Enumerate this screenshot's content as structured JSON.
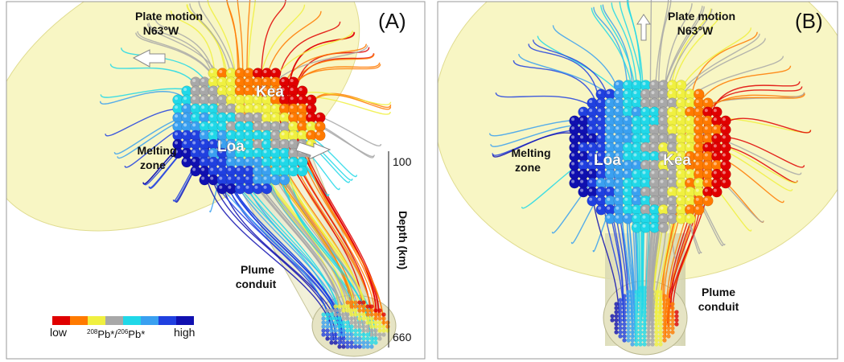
{
  "panels": [
    {
      "label": "(A)",
      "plate_motion": [
        "Plate motion",
        "N63°W"
      ],
      "kea": "Kea",
      "loa": "Loa",
      "melting_zone": [
        "Melting",
        "zone"
      ],
      "plume_conduit": [
        "Plume",
        "conduit"
      ],
      "depth_axis": {
        "top": "100",
        "title": "Depth  (km)",
        "bottom": "660"
      },
      "colorbar": {
        "low": "low",
        "high": "high",
        "label": [
          "208",
          "Pb*/",
          "206",
          "Pb*"
        ]
      }
    },
    {
      "label": "(B)",
      "plate_motion": [
        "Plate motion",
        "N63°W"
      ],
      "kea": "Kea",
      "loa": "Loa",
      "melting_zone": [
        "Melting",
        "zone"
      ],
      "plume_conduit": [
        "Plume",
        "conduit"
      ]
    }
  ]
}
